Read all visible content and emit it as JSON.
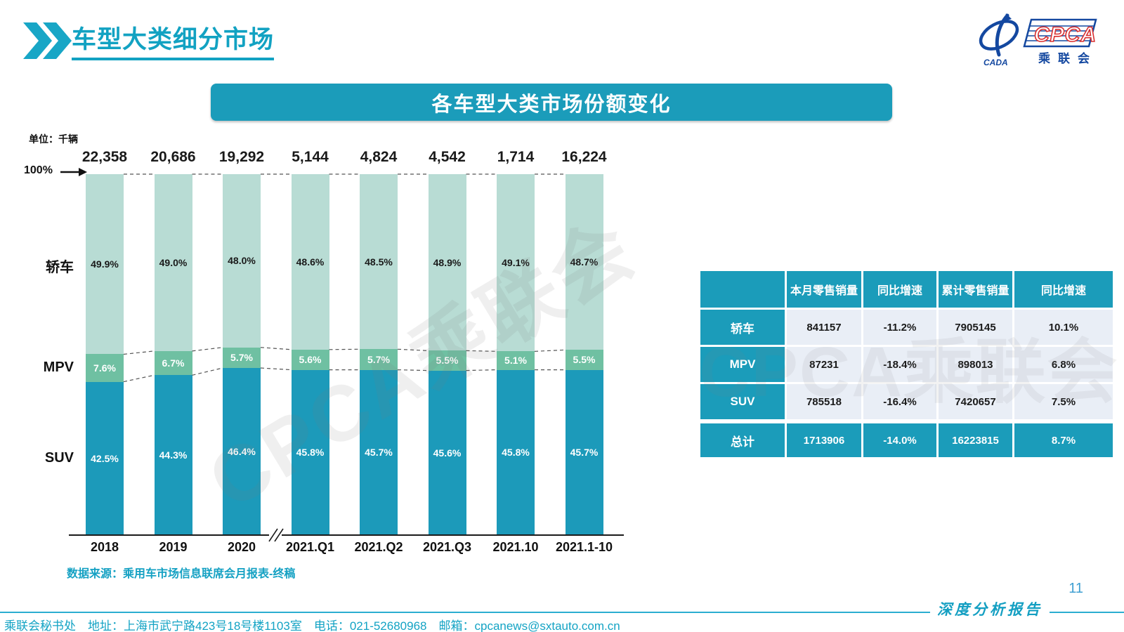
{
  "page_title": "车型大类细分市场",
  "logo": {
    "cpca": "CPCA",
    "cada": "CADA",
    "sub": "乘联会"
  },
  "banner_title": "各车型大类市场份额变化",
  "unit_label": "单位：千辆",
  "axis_100_label": "100%",
  "chart_data": {
    "type": "bar",
    "stacked": true,
    "title": "各车型大类市场份额变化",
    "unit": "千辆",
    "ylim": [
      0,
      100
    ],
    "grid": false,
    "legend_position": "left",
    "axis_break_after": "2020",
    "categories": [
      "2018",
      "2019",
      "2020",
      "2021.Q1",
      "2021.Q2",
      "2021.Q3",
      "2021.10",
      "2021.1-10"
    ],
    "bar_totals": [
      "22,358",
      "20,686",
      "19,292",
      "5,144",
      "4,824",
      "4,542",
      "1,714",
      "16,224"
    ],
    "series": [
      {
        "name": "轿车",
        "color": "#b8dcd4",
        "label_color": "#1a1a1a",
        "values": [
          49.9,
          49.0,
          48.0,
          48.6,
          48.5,
          48.9,
          49.1,
          48.7
        ]
      },
      {
        "name": "MPV",
        "color": "#6fc0a2",
        "label_color": "#ffffff",
        "values": [
          7.6,
          6.7,
          5.7,
          5.6,
          5.7,
          5.5,
          5.1,
          5.5
        ]
      },
      {
        "name": "SUV",
        "color": "#1c9aba",
        "label_color": "#ffffff",
        "values": [
          42.5,
          44.3,
          46.4,
          45.8,
          45.7,
          45.6,
          45.8,
          45.7
        ]
      }
    ]
  },
  "table": {
    "headers": [
      "",
      "本月零售销量",
      "同比增速",
      "累计零售销量",
      "同比增速"
    ],
    "rows": [
      {
        "label": "轿车",
        "values": [
          "841157",
          "-11.2%",
          "7905145",
          "10.1%"
        ],
        "is_total": false
      },
      {
        "label": "MPV",
        "values": [
          "87231",
          "-18.4%",
          "898013",
          "6.8%"
        ],
        "is_total": false
      },
      {
        "label": "SUV",
        "values": [
          "785518",
          "-16.4%",
          "7420657",
          "7.5%"
        ],
        "is_total": false
      },
      {
        "label": "总计",
        "values": [
          "1713906",
          "-14.0%",
          "16223815",
          "8.7%"
        ],
        "is_total": true
      }
    ]
  },
  "source_note": "数据来源：乘用车市场信息联席会月报表-终稿",
  "watermark_text": "CPCA乘联会",
  "footer": {
    "left": "乘联会秘书处　地址：上海市武宁路423号18号楼1103室　电话：021-52680968　邮箱：cpcanews@sxtauto.com.cn",
    "report_label": "深度分析报告",
    "page_number": "11"
  },
  "colors": {
    "teal": "#1b9cba",
    "title_teal": "#12a2c2",
    "table_cell_bg": "#e9eef6",
    "logo_blue": "#1448a0",
    "logo_red": "#d93030"
  }
}
